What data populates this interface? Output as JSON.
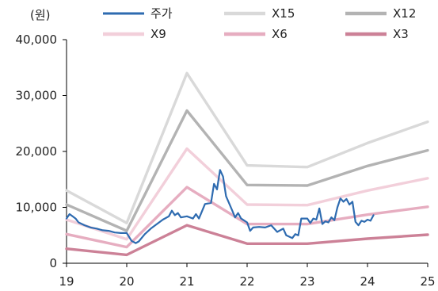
{
  "chart_data": {
    "type": "line",
    "unit_label": "(원)",
    "x_tick_labels": [
      "19",
      "20",
      "21",
      "22",
      "23",
      "24",
      "25"
    ],
    "y_tick_labels": [
      "0",
      "10,000",
      "20,000",
      "30,000",
      "40,000"
    ],
    "xlim": [
      2019,
      2025
    ],
    "ylim": [
      0,
      40000
    ],
    "grid": false,
    "legend_position": "top",
    "series": [
      {
        "name": "주가",
        "color": "#2e6bb0",
        "points": [
          [
            2019.0,
            8000
          ],
          [
            2019.05,
            8800
          ],
          [
            2019.1,
            8400
          ],
          [
            2019.15,
            8000
          ],
          [
            2019.2,
            7300
          ],
          [
            2019.3,
            6800
          ],
          [
            2019.4,
            6400
          ],
          [
            2019.5,
            6200
          ],
          [
            2019.6,
            5900
          ],
          [
            2019.7,
            5800
          ],
          [
            2019.8,
            5500
          ],
          [
            2019.9,
            5400
          ],
          [
            2020.0,
            5400
          ],
          [
            2020.08,
            4000
          ],
          [
            2020.15,
            3600
          ],
          [
            2020.2,
            3900
          ],
          [
            2020.3,
            5200
          ],
          [
            2020.4,
            6200
          ],
          [
            2020.5,
            7000
          ],
          [
            2020.6,
            7800
          ],
          [
            2020.7,
            8400
          ],
          [
            2020.75,
            9400
          ],
          [
            2020.8,
            8600
          ],
          [
            2020.85,
            9000
          ],
          [
            2020.9,
            8200
          ],
          [
            2021.0,
            8400
          ],
          [
            2021.1,
            8000
          ],
          [
            2021.15,
            8800
          ],
          [
            2021.2,
            8000
          ],
          [
            2021.3,
            10600
          ],
          [
            2021.4,
            10800
          ],
          [
            2021.45,
            14200
          ],
          [
            2021.5,
            13200
          ],
          [
            2021.55,
            16700
          ],
          [
            2021.6,
            15500
          ],
          [
            2021.65,
            12000
          ],
          [
            2021.75,
            9500
          ],
          [
            2021.8,
            8200
          ],
          [
            2021.85,
            9000
          ],
          [
            2021.9,
            8000
          ],
          [
            2022.0,
            7300
          ],
          [
            2022.05,
            5800
          ],
          [
            2022.1,
            6400
          ],
          [
            2022.2,
            6500
          ],
          [
            2022.3,
            6400
          ],
          [
            2022.4,
            6800
          ],
          [
            2022.5,
            5600
          ],
          [
            2022.6,
            6200
          ],
          [
            2022.65,
            5000
          ],
          [
            2022.75,
            4500
          ],
          [
            2022.8,
            5200
          ],
          [
            2022.85,
            5000
          ],
          [
            2022.9,
            8000
          ],
          [
            2023.0,
            8000
          ],
          [
            2023.05,
            7200
          ],
          [
            2023.1,
            8000
          ],
          [
            2023.15,
            7800
          ],
          [
            2023.2,
            9800
          ],
          [
            2023.25,
            7000
          ],
          [
            2023.3,
            7500
          ],
          [
            2023.35,
            7300
          ],
          [
            2023.4,
            8200
          ],
          [
            2023.45,
            7700
          ],
          [
            2023.5,
            10000
          ],
          [
            2023.55,
            11600
          ],
          [
            2023.6,
            11000
          ],
          [
            2023.65,
            11500
          ],
          [
            2023.7,
            10500
          ],
          [
            2023.75,
            11000
          ],
          [
            2023.8,
            7400
          ],
          [
            2023.85,
            6800
          ],
          [
            2023.9,
            7600
          ],
          [
            2023.95,
            7400
          ],
          [
            2024.0,
            7800
          ],
          [
            2024.05,
            7600
          ],
          [
            2024.1,
            8600
          ]
        ]
      },
      {
        "name": "X15",
        "color": "#d9d9d9",
        "points": [
          [
            2019.0,
            13000
          ],
          [
            2020.0,
            7200
          ],
          [
            2021.0,
            34000
          ],
          [
            2022.0,
            17500
          ],
          [
            2023.0,
            17200
          ],
          [
            2024.0,
            21500
          ],
          [
            2025.0,
            25300
          ]
        ]
      },
      {
        "name": "X12",
        "color": "#b3b3b3",
        "points": [
          [
            2019.0,
            10500
          ],
          [
            2020.0,
            5800
          ],
          [
            2021.0,
            27300
          ],
          [
            2022.0,
            14000
          ],
          [
            2023.0,
            13900
          ],
          [
            2024.0,
            17400
          ],
          [
            2025.0,
            20200
          ]
        ]
      },
      {
        "name": "X9",
        "color": "#f2cfda",
        "points": [
          [
            2019.0,
            7800
          ],
          [
            2020.0,
            4300
          ],
          [
            2021.0,
            20500
          ],
          [
            2022.0,
            10500
          ],
          [
            2023.0,
            10400
          ],
          [
            2024.0,
            13000
          ],
          [
            2025.0,
            15200
          ]
        ]
      },
      {
        "name": "X6",
        "color": "#e6adc0",
        "points": [
          [
            2019.0,
            5200
          ],
          [
            2020.0,
            2900
          ],
          [
            2021.0,
            13600
          ],
          [
            2022.0,
            7000
          ],
          [
            2023.0,
            7000
          ],
          [
            2024.0,
            8700
          ],
          [
            2025.0,
            10100
          ]
        ]
      },
      {
        "name": "X3",
        "color": "#cc8197",
        "points": [
          [
            2019.0,
            2600
          ],
          [
            2020.0,
            1500
          ],
          [
            2021.0,
            6800
          ],
          [
            2022.0,
            3500
          ],
          [
            2023.0,
            3500
          ],
          [
            2024.0,
            4400
          ],
          [
            2025.0,
            5100
          ]
        ]
      }
    ]
  }
}
